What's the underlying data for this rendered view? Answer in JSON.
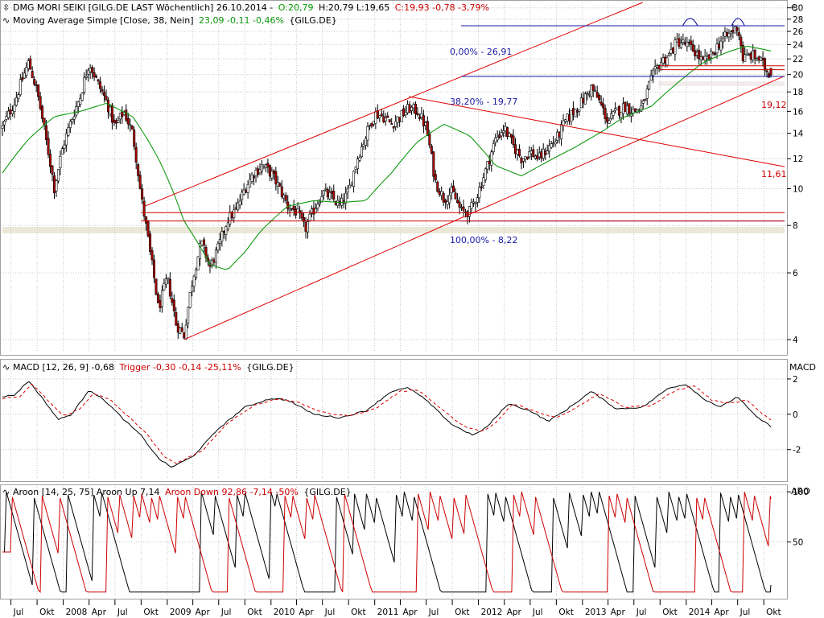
{
  "colors": {
    "background": "#ffffff",
    "grid": "#c8c8c8",
    "frame": "#a0a0a0",
    "up_candle": "#ffffff",
    "down_candle": "#b00000",
    "candle_outline": "#000000",
    "moving_average": "#119911",
    "trend_channel": "#dd0000",
    "fib_line": "#1a1aa6",
    "fib_text": "#1a1aa6",
    "zone_fill": "#ece8d8",
    "zone_border": "#cc0000",
    "macd_line": "#000000",
    "macd_trigger": "#dd0000",
    "aroon_up": "#000000",
    "aroon_down": "#cc0000",
    "positive": "#009900",
    "negative": "#cc0000"
  },
  "header": {
    "main": {
      "title": "DMG MORI SEIKI [GILG.DE LAST Wöchentlich] 26.10.2014 -",
      "open": "O:20,79",
      "hlc": "H:20,79 L:19,65",
      "close": "C:19,93 -0,78 -3,79%"
    },
    "ma": {
      "label": "Moving Average Simple [Close, 38, Nein]",
      "value": "23,09 -0,11 -0,46%",
      "sym": "{GILG.DE}"
    },
    "macd": {
      "label": "MACD [12, 26, 9] -0,68",
      "trigger": "Trigger -0,30 -0,14 -25,11%",
      "sym": "{GILG.DE}"
    },
    "aroon": {
      "label": "Aroon [14, 25, 75] Aroon Up 7,14",
      "down": "Aroon Down 92,86 -7,14 -50%",
      "sym": "{GILG.DE}"
    },
    "currency": "€"
  },
  "panel_labels": {
    "macd": "MACD",
    "aroon": "ARO"
  },
  "annotations": {
    "fib_0": "0,00% - 26,91",
    "fib_38": "38,20% - 19,77",
    "fib_100": "100,00% - 8,22",
    "channel_value": "19,12",
    "falling_line_value": "11,61"
  },
  "chart_data": [
    {
      "type": "candlestick",
      "panel": "price",
      "scale": "log",
      "ylim": [
        3.7,
        31
      ],
      "y_ticks": [
        4,
        6,
        8,
        10,
        12,
        14,
        16,
        18,
        20,
        22,
        24,
        26,
        28,
        30
      ],
      "x_ticks": [
        "Jul",
        "Okt",
        "2008",
        "Apr",
        "Jul",
        "Okt",
        "2009",
        "Apr",
        "Jul",
        "Okt",
        "2010",
        "Apr",
        "Jul",
        "Okt",
        "2011",
        "Apr",
        "Jul",
        "Okt",
        "2012",
        "Apr",
        "Jul",
        "Okt",
        "2013",
        "Apr",
        "Jul",
        "Okt",
        "2014",
        "Apr",
        "Jul",
        "Okt"
      ],
      "last": {
        "date": "26.10.2014",
        "open": 20.79,
        "high": 20.79,
        "low": 19.65,
        "close": 19.93
      },
      "close_path": [
        [
          "2007-06-01",
          14.5
        ],
        [
          "2007-07-15",
          17.0
        ],
        [
          "2007-09-01",
          21.5
        ],
        [
          "2007-10-01",
          18.0
        ],
        [
          "2007-11-01",
          13.5
        ],
        [
          "2007-12-01",
          10.0
        ],
        [
          "2008-01-01",
          13.0
        ],
        [
          "2008-03-01",
          17.5
        ],
        [
          "2008-04-01",
          21.5
        ],
        [
          "2008-05-01",
          19.0
        ],
        [
          "2008-06-01",
          17.0
        ],
        [
          "2008-07-01",
          14.5
        ],
        [
          "2008-08-01",
          16.0
        ],
        [
          "2008-09-01",
          14.0
        ],
        [
          "2008-10-01",
          9.5
        ],
        [
          "2008-11-01",
          6.8
        ],
        [
          "2008-12-01",
          4.8
        ],
        [
          "2009-01-01",
          5.8
        ],
        [
          "2009-02-01",
          4.4
        ],
        [
          "2009-03-01",
          4.1
        ],
        [
          "2009-04-01",
          5.8
        ],
        [
          "2009-05-01",
          7.2
        ],
        [
          "2009-06-01",
          6.2
        ],
        [
          "2009-07-01",
          7.0
        ],
        [
          "2009-08-01",
          8.3
        ],
        [
          "2009-09-01",
          8.8
        ],
        [
          "2009-10-01",
          10.0
        ],
        [
          "2009-11-01",
          11.0
        ],
        [
          "2009-12-01",
          11.5
        ],
        [
          "2010-01-01",
          11.0
        ],
        [
          "2010-02-01",
          10.0
        ],
        [
          "2010-03-01",
          9.0
        ],
        [
          "2010-04-01",
          8.7
        ],
        [
          "2010-05-01",
          7.8
        ],
        [
          "2010-06-01",
          8.8
        ],
        [
          "2010-07-01",
          9.8
        ],
        [
          "2010-08-01",
          9.5
        ],
        [
          "2010-09-01",
          9.0
        ],
        [
          "2010-10-01",
          9.8
        ],
        [
          "2010-11-01",
          12.0
        ],
        [
          "2010-12-01",
          13.8
        ],
        [
          "2011-01-01",
          15.8
        ],
        [
          "2011-02-01",
          15.5
        ],
        [
          "2011-03-01",
          14.8
        ],
        [
          "2011-04-01",
          15.5
        ],
        [
          "2011-05-01",
          16.3
        ],
        [
          "2011-06-01",
          16.0
        ],
        [
          "2011-07-01",
          14.5
        ],
        [
          "2011-08-01",
          10.5
        ],
        [
          "2011-09-01",
          9.4
        ],
        [
          "2011-10-01",
          9.8
        ],
        [
          "2011-11-01",
          8.7
        ],
        [
          "2011-12-01",
          8.7
        ],
        [
          "2012-01-01",
          9.8
        ],
        [
          "2012-02-01",
          11.5
        ],
        [
          "2012-03-01",
          13.5
        ],
        [
          "2012-04-01",
          14.5
        ],
        [
          "2012-05-01",
          13.0
        ],
        [
          "2012-06-01",
          12.0
        ],
        [
          "2012-07-01",
          12.5
        ],
        [
          "2012-08-01",
          12.0
        ],
        [
          "2012-09-01",
          12.8
        ],
        [
          "2012-10-01",
          13.5
        ],
        [
          "2012-11-01",
          15.0
        ],
        [
          "2012-12-01",
          16.0
        ],
        [
          "2013-01-01",
          17.0
        ],
        [
          "2013-02-01",
          18.5
        ],
        [
          "2013-03-01",
          17.0
        ],
        [
          "2013-04-01",
          15.0
        ],
        [
          "2013-05-01",
          16.0
        ],
        [
          "2013-06-01",
          16.5
        ],
        [
          "2013-07-01",
          16.0
        ],
        [
          "2013-08-01",
          16.5
        ],
        [
          "2013-09-01",
          19.5
        ],
        [
          "2013-10-01",
          21.5
        ],
        [
          "2013-11-01",
          22.5
        ],
        [
          "2013-12-01",
          24.5
        ],
        [
          "2014-01-01",
          24.0
        ],
        [
          "2014-02-01",
          23.0
        ],
        [
          "2014-03-01",
          21.5
        ],
        [
          "2014-04-01",
          22.5
        ],
        [
          "2014-05-01",
          24.5
        ],
        [
          "2014-06-01",
          25.5
        ],
        [
          "2014-07-01",
          26.8
        ],
        [
          "2014-07-20",
          22.0
        ],
        [
          "2014-08-15",
          22.5
        ],
        [
          "2014-09-15",
          22.0
        ],
        [
          "2014-10-10",
          20.5
        ],
        [
          "2014-10-26",
          19.93
        ]
      ],
      "moving_average_path": [
        [
          "2007-06-01",
          11.0
        ],
        [
          "2007-09-01",
          13.5
        ],
        [
          "2007-12-01",
          15.5
        ],
        [
          "2008-03-01",
          16.0
        ],
        [
          "2008-06-01",
          16.8
        ],
        [
          "2008-09-01",
          15.5
        ],
        [
          "2008-12-01",
          12.0
        ],
        [
          "2009-03-01",
          8.2
        ],
        [
          "2009-06-01",
          6.3
        ],
        [
          "2009-08-01",
          6.1
        ],
        [
          "2009-10-01",
          6.8
        ],
        [
          "2009-12-01",
          7.8
        ],
        [
          "2010-03-01",
          9.0
        ],
        [
          "2010-06-01",
          9.3
        ],
        [
          "2010-09-01",
          9.2
        ],
        [
          "2010-12-01",
          9.3
        ],
        [
          "2011-03-01",
          11.0
        ],
        [
          "2011-06-01",
          13.3
        ],
        [
          "2011-09-01",
          14.8
        ],
        [
          "2011-12-01",
          13.8
        ],
        [
          "2012-03-01",
          11.5
        ],
        [
          "2012-06-01",
          10.8
        ],
        [
          "2012-09-01",
          11.8
        ],
        [
          "2012-12-01",
          12.8
        ],
        [
          "2013-03-01",
          14.0
        ],
        [
          "2013-06-01",
          15.5
        ],
        [
          "2013-09-01",
          16.5
        ],
        [
          "2013-12-01",
          19.0
        ],
        [
          "2014-03-01",
          21.5
        ],
        [
          "2014-06-01",
          23.0
        ],
        [
          "2014-08-01",
          23.8
        ],
        [
          "2014-10-26",
          23.09
        ]
      ],
      "moving_average": {
        "period": 38,
        "last": 23.09
      },
      "trend_channel": {
        "lower": [
          [
            "2009-03-01",
            4.0
          ],
          [
            "2014-10-26",
            19.12
          ]
        ],
        "upper": [
          [
            "2008-10-15",
            9.0
          ],
          [
            "2013-08-01",
            31.0
          ]
        ]
      },
      "falling_line": [
        [
          "2011-05-01",
          17.5
        ],
        [
          "2014-10-26",
          11.61
        ]
      ],
      "horizontal_levels": [
        26.91,
        19.77,
        8.22
      ],
      "support_zone": [
        8.22,
        8.65
      ],
      "resistance_zone": [
        20.6,
        21.1
      ]
    },
    {
      "type": "line",
      "panel": "macd",
      "ylim": [
        -3.7,
        3.0
      ],
      "y_ticks": [
        -2,
        0,
        2
      ],
      "series": [
        {
          "name": "MACD",
          "values": [
            [
              "2007-06-01",
              1.0
            ],
            [
              "2007-07-15",
              1.1
            ],
            [
              "2007-09-01",
              1.9
            ],
            [
              "2007-10-15",
              1.0
            ],
            [
              "2007-12-15",
              -0.3
            ],
            [
              "2008-02-01",
              0.0
            ],
            [
              "2008-04-01",
              1.4
            ],
            [
              "2008-06-01",
              0.7
            ],
            [
              "2008-08-01",
              -0.3
            ],
            [
              "2008-10-01",
              -1.2
            ],
            [
              "2008-12-01",
              -2.5
            ],
            [
              "2009-01-15",
              -3.0
            ],
            [
              "2009-04-01",
              -2.4
            ],
            [
              "2009-07-01",
              -0.8
            ],
            [
              "2009-10-01",
              0.4
            ],
            [
              "2010-01-01",
              0.9
            ],
            [
              "2010-03-01",
              0.8
            ],
            [
              "2010-06-01",
              0.0
            ],
            [
              "2010-09-01",
              -0.2
            ],
            [
              "2010-12-01",
              0.2
            ],
            [
              "2011-03-01",
              1.3
            ],
            [
              "2011-05-01",
              1.5
            ],
            [
              "2011-07-01",
              0.8
            ],
            [
              "2011-10-01",
              -0.6
            ],
            [
              "2011-12-15",
              -1.2
            ],
            [
              "2012-02-01",
              -0.7
            ],
            [
              "2012-04-15",
              0.6
            ],
            [
              "2012-07-01",
              0.2
            ],
            [
              "2012-09-01",
              -0.4
            ],
            [
              "2012-11-01",
              0.2
            ],
            [
              "2013-02-01",
              1.3
            ],
            [
              "2013-05-01",
              0.3
            ],
            [
              "2013-08-01",
              0.4
            ],
            [
              "2013-11-01",
              1.5
            ],
            [
              "2014-01-01",
              1.7
            ],
            [
              "2014-03-01",
              0.9
            ],
            [
              "2014-05-01",
              0.4
            ],
            [
              "2014-07-01",
              1.0
            ],
            [
              "2014-09-01",
              -0.1
            ],
            [
              "2014-10-26",
              -0.68
            ]
          ]
        },
        {
          "name": "Trigger",
          "dashed": true,
          "values": [
            [
              "2007-06-01",
              0.9
            ],
            [
              "2007-08-01",
              1.0
            ],
            [
              "2007-09-15",
              1.7
            ],
            [
              "2007-11-01",
              0.9
            ],
            [
              "2008-01-01",
              -0.1
            ],
            [
              "2008-03-01",
              0.3
            ],
            [
              "2008-04-15",
              1.2
            ],
            [
              "2008-06-15",
              0.8
            ],
            [
              "2008-08-15",
              -0.1
            ],
            [
              "2008-10-15",
              -1.0
            ],
            [
              "2008-12-15",
              -2.3
            ],
            [
              "2009-02-01",
              -2.8
            ],
            [
              "2009-05-01",
              -2.1
            ],
            [
              "2009-08-01",
              -0.5
            ],
            [
              "2009-11-01",
              0.5
            ],
            [
              "2010-02-01",
              0.9
            ],
            [
              "2010-04-01",
              0.7
            ],
            [
              "2010-07-01",
              0.1
            ],
            [
              "2010-10-01",
              -0.1
            ],
            [
              "2011-01-01",
              0.3
            ],
            [
              "2011-04-01",
              1.3
            ],
            [
              "2011-06-01",
              1.4
            ],
            [
              "2011-08-01",
              0.6
            ],
            [
              "2011-11-01",
              -0.6
            ],
            [
              "2012-01-15",
              -1.0
            ],
            [
              "2012-03-01",
              -0.5
            ],
            [
              "2012-05-01",
              0.6
            ],
            [
              "2012-08-01",
              0.1
            ],
            [
              "2012-10-01",
              -0.2
            ],
            [
              "2012-12-01",
              0.3
            ],
            [
              "2013-03-01",
              1.2
            ],
            [
              "2013-06-01",
              0.4
            ],
            [
              "2013-09-01",
              0.5
            ],
            [
              "2013-12-01",
              1.4
            ],
            [
              "2014-02-01",
              1.6
            ],
            [
              "2014-04-01",
              0.8
            ],
            [
              "2014-06-01",
              0.6
            ],
            [
              "2014-08-01",
              0.8
            ],
            [
              "2014-09-20",
              0.1
            ],
            [
              "2014-10-26",
              -0.3
            ]
          ]
        }
      ]
    },
    {
      "type": "line",
      "panel": "aroon",
      "ylim": [
        -5,
        105
      ],
      "y_ticks": [
        50,
        100
      ],
      "period": 14,
      "series": [
        {
          "name": "Aroon Up",
          "last": 7.14
        },
        {
          "name": "Aroon Down",
          "last": 92.86
        }
      ],
      "up_resets": [
        "2007-06-15",
        "2007-09-15",
        "2008-01-15",
        "2008-04-15",
        "2008-05-15",
        "2009-05-01",
        "2009-06-15",
        "2009-09-01",
        "2009-10-01",
        "2010-01-01",
        "2010-01-20",
        "2010-08-15",
        "2010-10-20",
        "2010-12-01",
        "2011-01-01",
        "2011-03-15",
        "2011-04-15",
        "2011-05-15",
        "2012-02-01",
        "2012-03-01",
        "2012-04-01",
        "2012-09-15",
        "2012-11-15",
        "2013-01-01",
        "2013-02-01",
        "2013-03-01",
        "2013-07-01",
        "2013-09-15",
        "2013-11-01",
        "2013-12-01",
        "2014-01-01",
        "2014-05-01",
        "2014-06-01",
        "2014-07-01"
      ],
      "down_resets": [
        "2007-07-01",
        "2007-10-15",
        "2007-12-15",
        "2008-06-01",
        "2008-07-15",
        "2008-09-01",
        "2008-10-01",
        "2008-11-01",
        "2008-12-01",
        "2009-02-01",
        "2009-03-01",
        "2009-08-01",
        "2010-02-15",
        "2010-03-15",
        "2010-05-01",
        "2010-06-01",
        "2010-09-15",
        "2011-06-01",
        "2011-07-15",
        "2011-08-15",
        "2011-10-01",
        "2011-11-15",
        "2012-05-01",
        "2012-06-01",
        "2012-07-15",
        "2013-04-01",
        "2013-05-01",
        "2013-06-01",
        "2014-02-01",
        "2014-03-01",
        "2014-07-25",
        "2014-08-25",
        "2014-10-20"
      ]
    }
  ]
}
